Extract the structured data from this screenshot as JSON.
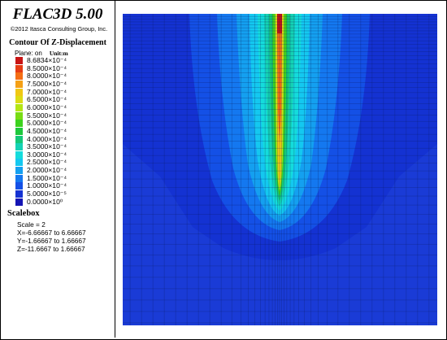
{
  "app": {
    "title": "FLAC3D 5.00",
    "copyright": "©2012 Itasca Consulting Group, Inc."
  },
  "contour": {
    "title": "Contour Of Z-Displacement",
    "plane": "Plane: on",
    "unit": "Unit:m",
    "levels": [
      {
        "label": "8.6834×10⁻⁴",
        "color": "#c81414"
      },
      {
        "label": "8.5000×10⁻⁴",
        "color": "#e63c14"
      },
      {
        "label": "8.0000×10⁻⁴",
        "color": "#f56e14"
      },
      {
        "label": "7.5000×10⁻⁴",
        "color": "#f5a014"
      },
      {
        "label": "7.0000×10⁻⁴",
        "color": "#f0c814"
      },
      {
        "label": "6.5000×10⁻⁴",
        "color": "#dcdc14"
      },
      {
        "label": "6.0000×10⁻⁴",
        "color": "#b4e614"
      },
      {
        "label": "5.5000×10⁻⁴",
        "color": "#78dc14"
      },
      {
        "label": "5.0000×10⁻⁴",
        "color": "#3cd21e"
      },
      {
        "label": "4.5000×10⁻⁴",
        "color": "#1ec83c"
      },
      {
        "label": "4.0000×10⁻⁴",
        "color": "#14c878"
      },
      {
        "label": "3.5000×10⁻⁴",
        "color": "#14d2b4"
      },
      {
        "label": "3.0000×10⁻⁴",
        "color": "#14dcdc"
      },
      {
        "label": "2.5000×10⁻⁴",
        "color": "#14c8f0"
      },
      {
        "label": "2.0000×10⁻⁴",
        "color": "#14a0f0"
      },
      {
        "label": "1.5000×10⁻⁴",
        "color": "#1478f0"
      },
      {
        "label": "1.0000×10⁻⁴",
        "color": "#1450e6"
      },
      {
        "label": "5.0000×10⁻⁵",
        "color": "#1432d2"
      },
      {
        "label": "0.0000×10⁰",
        "color": "#1414b4"
      }
    ]
  },
  "scalebox": {
    "title": "Scalebox",
    "scale": "Scale = 2",
    "x_range": "X=-6.66667 to 6.66667",
    "y_range": "Y=-1.66667 to 1.66667",
    "z_range": "Z=-11.6667 to 1.66667"
  },
  "plot": {
    "background_color": "#1a3bd6",
    "mesh_line_color": "#0a1a5a"
  }
}
